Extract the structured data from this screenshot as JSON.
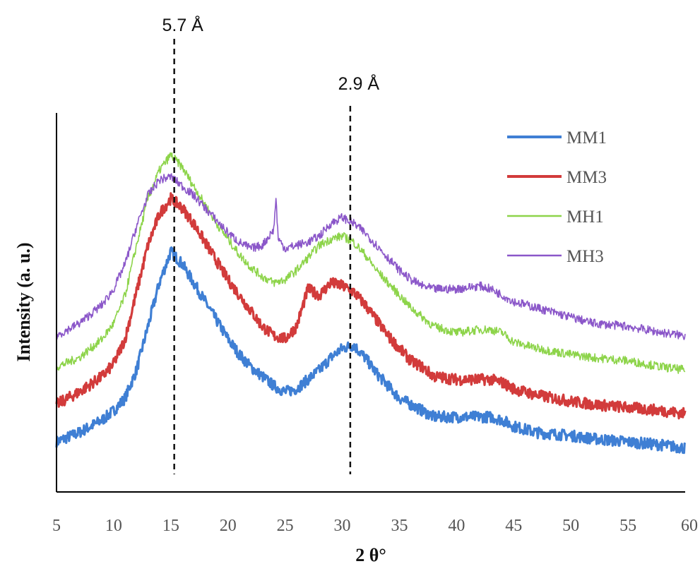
{
  "chart_data": {
    "type": "line",
    "title": "",
    "xlabel": "2 θ°",
    "ylabel": "Intensity (a. u.)",
    "xlim": [
      5,
      60
    ],
    "x_ticks": [
      5,
      10,
      15,
      20,
      25,
      30,
      35,
      40,
      45,
      50,
      55,
      60
    ],
    "grid": false,
    "legend": "top-right",
    "reference_lines": [
      {
        "x": 15.3,
        "label": "5.7 Å"
      },
      {
        "x": 30.7,
        "label": "2.9 Å"
      }
    ],
    "series": [
      {
        "name": "MM1",
        "color": "#3f7fd4",
        "x": [
          5,
          7,
          9,
          10,
          11,
          12,
          13,
          14,
          15,
          16,
          17,
          18,
          19,
          20,
          21,
          22,
          23,
          24,
          25,
          26,
          27,
          28,
          29,
          30,
          31,
          32,
          33,
          34,
          35,
          36,
          37,
          38,
          40,
          42,
          43,
          44,
          45,
          47,
          50,
          52,
          55,
          58,
          60
        ],
        "y": [
          0.07,
          0.1,
          0.14,
          0.17,
          0.21,
          0.3,
          0.44,
          0.58,
          0.68,
          0.64,
          0.58,
          0.52,
          0.46,
          0.4,
          0.35,
          0.31,
          0.28,
          0.25,
          0.23,
          0.24,
          0.27,
          0.3,
          0.34,
          0.37,
          0.38,
          0.34,
          0.29,
          0.25,
          0.21,
          0.19,
          0.17,
          0.15,
          0.15,
          0.15,
          0.15,
          0.14,
          0.12,
          0.1,
          0.09,
          0.08,
          0.07,
          0.06,
          0.05
        ]
      },
      {
        "name": "MM3",
        "color": "#d23b3b",
        "x": [
          5,
          7,
          9,
          10,
          11,
          12,
          13,
          14,
          15,
          16,
          17,
          18,
          19,
          20,
          21,
          22,
          23,
          24,
          25,
          26,
          27,
          28,
          29,
          30,
          31,
          32,
          33,
          34,
          35,
          36,
          37,
          38,
          40,
          42,
          43,
          44,
          45,
          47,
          50,
          52,
          55,
          58,
          60
        ],
        "y": [
          0.19,
          0.23,
          0.28,
          0.32,
          0.4,
          0.55,
          0.7,
          0.8,
          0.85,
          0.82,
          0.77,
          0.71,
          0.65,
          0.59,
          0.54,
          0.49,
          0.44,
          0.41,
          0.4,
          0.44,
          0.56,
          0.54,
          0.58,
          0.57,
          0.55,
          0.51,
          0.46,
          0.41,
          0.37,
          0.33,
          0.31,
          0.28,
          0.27,
          0.27,
          0.27,
          0.26,
          0.24,
          0.22,
          0.2,
          0.19,
          0.18,
          0.17,
          0.16
        ]
      },
      {
        "name": "MH1",
        "color": "#8dd44a",
        "x": [
          5,
          7,
          9,
          10,
          11,
          12,
          13,
          14,
          15,
          16,
          17,
          18,
          19,
          20,
          21,
          22,
          23,
          24,
          25,
          26,
          27,
          28,
          29,
          30,
          31,
          32,
          33,
          34,
          35,
          36,
          37,
          38,
          40,
          42,
          43,
          44,
          45,
          47,
          50,
          52,
          55,
          58,
          60
        ],
        "y": [
          0.31,
          0.34,
          0.4,
          0.45,
          0.54,
          0.7,
          0.85,
          0.94,
          0.99,
          0.95,
          0.89,
          0.83,
          0.77,
          0.72,
          0.67,
          0.63,
          0.6,
          0.58,
          0.59,
          0.62,
          0.66,
          0.7,
          0.72,
          0.73,
          0.71,
          0.67,
          0.62,
          0.58,
          0.54,
          0.5,
          0.47,
          0.44,
          0.42,
          0.43,
          0.43,
          0.42,
          0.39,
          0.37,
          0.35,
          0.34,
          0.33,
          0.31,
          0.3
        ]
      },
      {
        "name": "MH3",
        "color": "#8b57c9",
        "x": [
          5,
          7,
          9,
          10,
          11,
          12,
          13,
          14,
          15,
          16,
          17,
          18,
          19,
          20,
          21,
          22,
          23,
          24,
          24.2,
          24.4,
          25,
          26,
          27,
          28,
          29,
          30,
          31,
          32,
          33,
          34,
          35,
          36,
          37,
          38,
          40,
          42,
          43,
          44,
          45,
          47,
          50,
          52,
          55,
          58,
          60
        ],
        "y": [
          0.41,
          0.45,
          0.51,
          0.56,
          0.64,
          0.76,
          0.86,
          0.91,
          0.92,
          0.89,
          0.86,
          0.82,
          0.78,
          0.74,
          0.71,
          0.69,
          0.7,
          0.75,
          0.85,
          0.72,
          0.69,
          0.7,
          0.71,
          0.73,
          0.77,
          0.79,
          0.77,
          0.74,
          0.7,
          0.66,
          0.62,
          0.59,
          0.57,
          0.56,
          0.56,
          0.57,
          0.56,
          0.54,
          0.52,
          0.5,
          0.47,
          0.45,
          0.44,
          0.42,
          0.41
        ]
      }
    ]
  }
}
